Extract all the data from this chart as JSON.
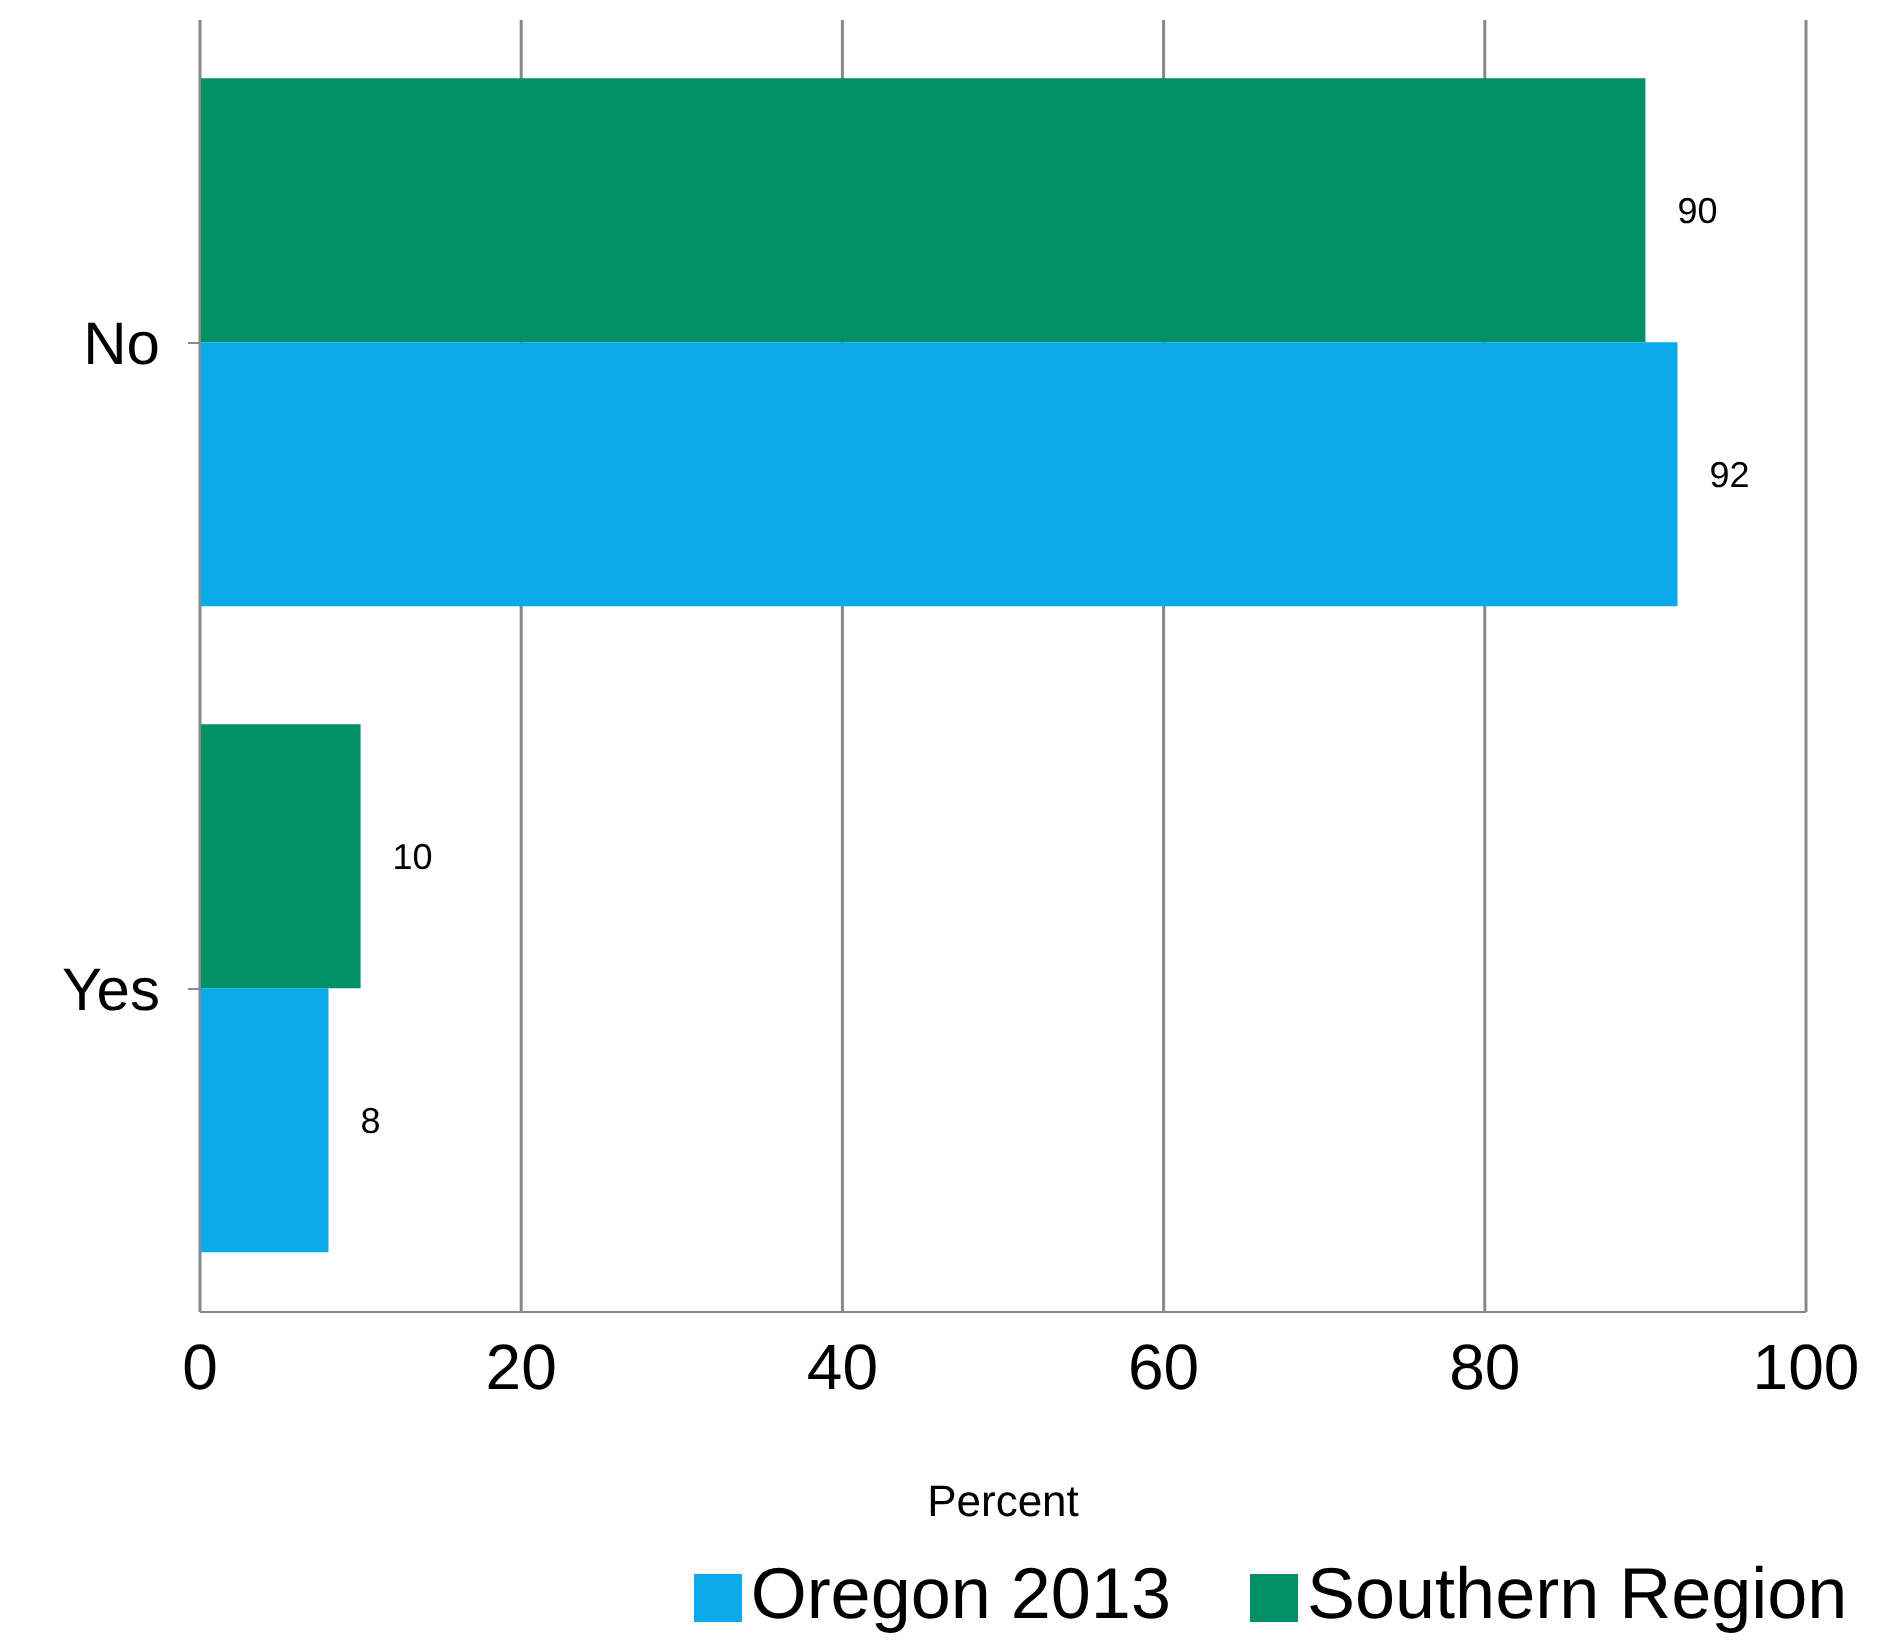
{
  "chart_data": {
    "type": "bar",
    "orientation": "horizontal",
    "categories": [
      "No",
      "Yes"
    ],
    "series": [
      {
        "name": "Southern Region",
        "color": "#009068",
        "values": [
          90,
          10
        ]
      },
      {
        "name": "Oregon 2013",
        "color": "#0aabe8",
        "values": [
          92,
          8
        ]
      }
    ],
    "xlabel": "Percent",
    "xlim": [
      0,
      100
    ],
    "xticks": [
      0,
      20,
      40,
      60,
      80,
      100
    ],
    "grid": "x",
    "legend": "bottom",
    "data_labels": true
  }
}
